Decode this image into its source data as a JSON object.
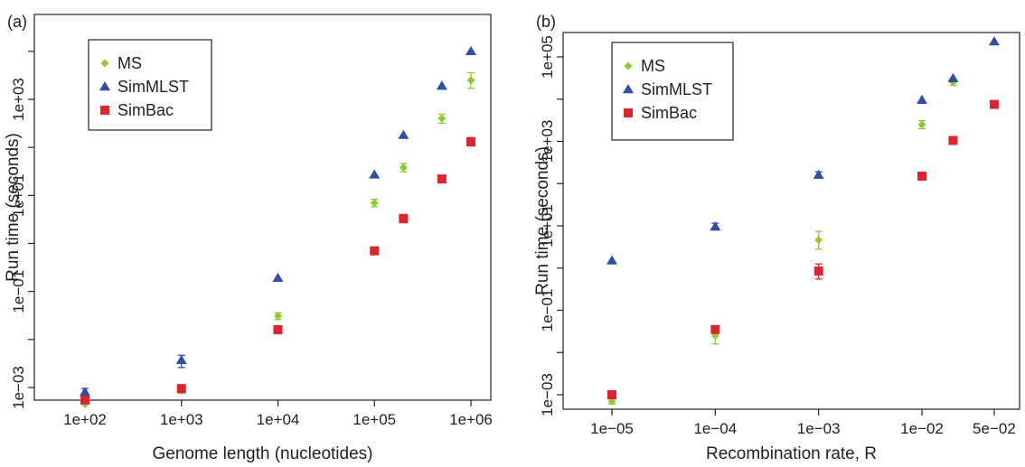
{
  "chart_data": [
    {
      "panel_label": "(a)",
      "type": "scatter",
      "title": "",
      "xlabel": "Genome length (nucleotides)",
      "ylabel": "Run time (seconds)",
      "xscale": "log",
      "yscale": "log",
      "xlim": [
        100,
        1000000
      ],
      "ylim": [
        0.0005,
        10000
      ],
      "x_ticks": [
        {
          "value": 100,
          "label": "1e+02"
        },
        {
          "value": 1000,
          "label": "1e+03"
        },
        {
          "value": 10000,
          "label": "1e+04"
        },
        {
          "value": 100000,
          "label": "1e+05"
        },
        {
          "value": 1000000,
          "label": "1e+06"
        }
      ],
      "y_ticks": [
        {
          "value": 0.001,
          "label": "1e−03"
        },
        {
          "value": 0.1,
          "label": "1e−01"
        },
        {
          "value": 10,
          "label": "1e+01"
        },
        {
          "value": 1000,
          "label": "1e+03"
        }
      ],
      "legend": {
        "placement": "top-left",
        "entries": [
          "MS",
          "SimMLST",
          "SimBac"
        ]
      },
      "grid": false,
      "series": [
        {
          "name": "MS",
          "marker": "diamond",
          "color": "#8fce2a",
          "points": [
            {
              "x": 100,
              "y": 0.00045
            },
            {
              "x": 1000,
              "y": 0.0009,
              "err": [
                0.00075,
                0.0011
              ]
            },
            {
              "x": 10000,
              "y": 0.031,
              "err": [
                0.026,
                0.036
              ]
            },
            {
              "x": 100000,
              "y": 7,
              "err": [
                5.8,
                8.3
              ]
            },
            {
              "x": 200000,
              "y": 38,
              "err": [
                31,
                46
              ]
            },
            {
              "x": 500000,
              "y": 400,
              "err": [
                320,
                490
              ]
            },
            {
              "x": 1000000,
              "y": 2500,
              "err": [
                1700,
                3600
              ]
            }
          ]
        },
        {
          "name": "SimMLST",
          "marker": "triangle",
          "color": "#2f4fa8",
          "points": [
            {
              "x": 100,
              "y": 0.0008,
              "err": [
                0.00065,
                0.00095
              ]
            },
            {
              "x": 1000,
              "y": 0.0037,
              "err": [
                0.0026,
                0.0047
              ]
            },
            {
              "x": 10000,
              "y": 0.19
            },
            {
              "x": 100000,
              "y": 27
            },
            {
              "x": 200000,
              "y": 180
            },
            {
              "x": 500000,
              "y": 1900
            },
            {
              "x": 1000000,
              "y": 10000
            }
          ]
        },
        {
          "name": "SimBac",
          "marker": "square",
          "color": "#e0242e",
          "points": [
            {
              "x": 100,
              "y": 0.00055
            },
            {
              "x": 1000,
              "y": 0.00095
            },
            {
              "x": 10000,
              "y": 0.016
            },
            {
              "x": 100000,
              "y": 0.7
            },
            {
              "x": 200000,
              "y": 3.3,
              "err": [
                2.7,
                4.0
              ]
            },
            {
              "x": 500000,
              "y": 22
            },
            {
              "x": 1000000,
              "y": 130,
              "err": [
                110,
                160
              ]
            }
          ]
        }
      ]
    },
    {
      "panel_label": "(b)",
      "type": "scatter",
      "title": "",
      "xlabel": "Recombination rate, R",
      "ylabel": "Run time (seconds)",
      "xscale": "log",
      "yscale": "log",
      "xlim": [
        1e-05,
        0.05
      ],
      "ylim": [
        0.0005,
        200000
      ],
      "x_ticks": [
        {
          "value": 1e-05,
          "label": "1e−05"
        },
        {
          "value": 0.0001,
          "label": "1e−04"
        },
        {
          "value": 0.001,
          "label": "1e−03"
        },
        {
          "value": 0.01,
          "label": "1e−02"
        },
        {
          "value": 0.05,
          "label": "5e−02"
        }
      ],
      "y_ticks": [
        {
          "value": 0.001,
          "label": "1e−03"
        },
        {
          "value": 0.1,
          "label": "1e−01"
        },
        {
          "value": 10,
          "label": "1e+01"
        },
        {
          "value": 1000,
          "label": "1e+03"
        },
        {
          "value": 100000,
          "label": "1e+05"
        }
      ],
      "legend": {
        "placement": "top-left",
        "entries": [
          "MS",
          "SimMLST",
          "SimBac"
        ]
      },
      "grid": false,
      "series": [
        {
          "name": "MS",
          "marker": "diamond",
          "color": "#8fce2a",
          "points": [
            {
              "x": 1e-05,
              "y": 0.0007,
              "err": [
                0.0006,
                0.0008
              ]
            },
            {
              "x": 0.0001,
              "y": 0.025,
              "err": [
                0.016,
                0.033
              ]
            },
            {
              "x": 0.001,
              "y": 4.6,
              "err": [
                2.8,
                7.4
              ]
            },
            {
              "x": 0.01,
              "y": 2500,
              "err": [
                2000,
                3100
              ]
            },
            {
              "x": 0.02,
              "y": 25000,
              "err": [
                21000,
                30000
              ]
            }
          ]
        },
        {
          "name": "SimMLST",
          "marker": "triangle",
          "color": "#2f4fa8",
          "points": [
            {
              "x": 1e-05,
              "y": 1.5
            },
            {
              "x": 0.0001,
              "y": 9.5,
              "err": [
                8,
                11.5
              ]
            },
            {
              "x": 0.001,
              "y": 160,
              "err": [
                135,
                190
              ]
            },
            {
              "x": 0.01,
              "y": 9500
            },
            {
              "x": 0.02,
              "y": 31000
            },
            {
              "x": 0.05,
              "y": 230000
            }
          ]
        },
        {
          "name": "SimBac",
          "marker": "square",
          "color": "#e0242e",
          "points": [
            {
              "x": 1e-05,
              "y": 0.001,
              "err": [
                0.0009,
                0.0012
              ]
            },
            {
              "x": 0.0001,
              "y": 0.035,
              "err": [
                0.03,
                0.042
              ]
            },
            {
              "x": 0.001,
              "y": 0.85,
              "err": [
                0.55,
                1.25
              ]
            },
            {
              "x": 0.01,
              "y": 150
            },
            {
              "x": 0.02,
              "y": 1050
            },
            {
              "x": 0.05,
              "y": 7500
            }
          ]
        }
      ]
    }
  ]
}
